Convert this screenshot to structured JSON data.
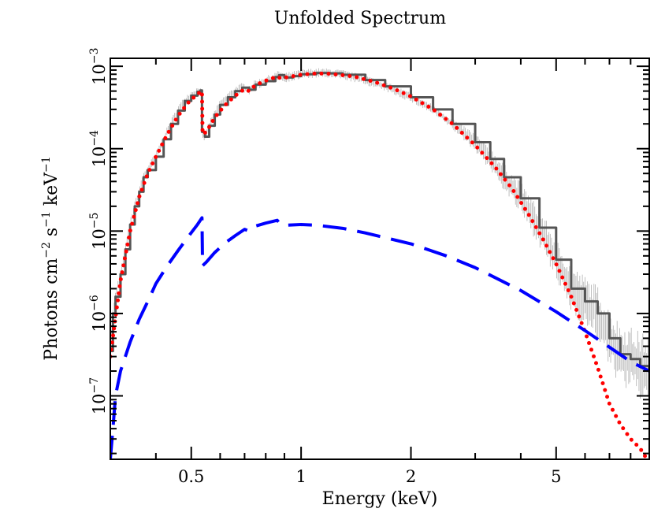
{
  "chart_data": {
    "type": "line",
    "title": "Unfolded Spectrum",
    "xlabel": "Energy (keV)",
    "ylabel": {
      "base": "Photons cm",
      "e1": "−2",
      "mid1": " s",
      "e2": "−1",
      "mid2": " keV",
      "e3": "−1"
    },
    "xscale": "log",
    "yscale": "log",
    "xlim": [
      0.3,
      9.0
    ],
    "ylim": [
      1.7e-08,
      0.00125
    ],
    "grid": false,
    "legend": "none",
    "x_ticks": [
      {
        "value": 0.5,
        "label": "0.5"
      },
      {
        "value": 1,
        "label": "1"
      },
      {
        "value": 2,
        "label": "2"
      },
      {
        "value": 5,
        "label": "5"
      }
    ],
    "y_ticks": [
      {
        "value": 1e-07,
        "base": "10",
        "exp": "−7"
      },
      {
        "value": 1e-06,
        "base": "10",
        "exp": "−6"
      },
      {
        "value": 1e-05,
        "base": "10",
        "exp": "−5"
      },
      {
        "value": 0.0001,
        "base": "10",
        "exp": "−4"
      },
      {
        "value": 0.001,
        "base": "10",
        "exp": "−3"
      }
    ],
    "series": [
      {
        "style": "data-steps",
        "color": "#555555",
        "x": [
          0.3,
          0.305,
          0.31,
          0.32,
          0.33,
          0.34,
          0.35,
          0.36,
          0.37,
          0.38,
          0.4,
          0.42,
          0.44,
          0.46,
          0.48,
          0.5,
          0.52,
          0.53,
          0.535,
          0.545,
          0.56,
          0.58,
          0.6,
          0.63,
          0.66,
          0.69,
          0.72,
          0.75,
          0.8,
          0.85,
          0.87,
          0.9,
          0.95,
          1.0,
          1.1,
          1.2,
          1.3,
          1.5,
          1.7,
          2.0,
          2.3,
          2.6,
          3.0,
          3.3,
          3.6,
          4.0,
          4.5,
          5.0,
          5.5,
          6.0,
          6.5,
          7.0,
          7.5,
          8.0,
          8.5,
          9.0
        ],
        "y": [
          3.5e-07,
          1e-06,
          1.6e-06,
          3e-06,
          6e-06,
          1.2e-05,
          2e-05,
          3e-05,
          4.5e-05,
          5.5e-05,
          8e-05,
          0.00013,
          0.0002,
          0.00029,
          0.00038,
          0.00044,
          0.00049,
          0.00051,
          0.00016,
          0.00014,
          0.00019,
          0.00026,
          0.00034,
          0.00042,
          0.0005,
          0.00055,
          0.00052,
          0.0006,
          0.00066,
          0.00074,
          0.00078,
          0.00073,
          0.00076,
          0.0008,
          0.00083,
          0.00082,
          0.00079,
          0.00068,
          0.00057,
          0.00042,
          0.0003,
          0.0002,
          0.00012,
          7.5e-05,
          4.5e-05,
          2.5e-05,
          1.1e-05,
          4.5e-06,
          2e-06,
          1.4e-06,
          1e-06,
          5e-07,
          3.2e-07,
          2.8e-07,
          2.3e-07,
          2.1e-07
        ]
      },
      {
        "style": "dotted",
        "color": "#ff0000",
        "x": [
          0.3,
          0.31,
          0.32,
          0.34,
          0.36,
          0.38,
          0.4,
          0.43,
          0.46,
          0.49,
          0.52,
          0.535,
          0.537,
          0.55,
          0.58,
          0.62,
          0.66,
          0.7,
          0.72,
          0.75,
          0.8,
          0.86,
          0.88,
          0.92,
          1.0,
          1.1,
          1.2,
          1.4,
          1.6,
          1.8,
          2.0,
          2.3,
          2.6,
          3.0,
          3.4,
          3.8,
          4.2,
          4.6,
          5.0,
          5.5,
          6.0,
          6.5,
          7.0,
          7.5,
          8.0,
          8.5,
          8.8
        ],
        "y": [
          3e-07,
          9e-07,
          2.5e-06,
          1e-05,
          2.6e-05,
          5e-05,
          8e-05,
          0.00015,
          0.00025,
          0.00036,
          0.00046,
          0.0005,
          0.00015,
          0.00016,
          0.00024,
          0.00034,
          0.00044,
          0.00053,
          0.0005,
          0.00059,
          0.00067,
          0.00075,
          0.00071,
          0.00074,
          0.00079,
          0.00082,
          0.00081,
          0.00075,
          0.00064,
          0.00053,
          0.00043,
          0.0003,
          0.0002,
          0.00011,
          6e-05,
          3.2e-05,
          1.6e-05,
          8e-06,
          4e-06,
          1.6e-06,
          6e-07,
          2.2e-07,
          8e-08,
          4.5e-08,
          3e-08,
          2.3e-08,
          1.8e-08
        ]
      },
      {
        "style": "dashed",
        "color": "#0000ff",
        "x": [
          0.3,
          0.305,
          0.31,
          0.32,
          0.34,
          0.36,
          0.38,
          0.4,
          0.43,
          0.46,
          0.49,
          0.52,
          0.535,
          0.537,
          0.55,
          0.58,
          0.62,
          0.66,
          0.7,
          0.72,
          0.75,
          0.8,
          0.86,
          0.88,
          0.92,
          1.0,
          1.1,
          1.3,
          1.5,
          2.0,
          2.5,
          3.0,
          4.0,
          5.0,
          6.0,
          7.0,
          8.0,
          9.0
        ],
        "y": [
          1.7e-08,
          4e-08,
          1e-07,
          2e-07,
          4.5e-07,
          8.5e-07,
          1.4e-06,
          2.3e-06,
          3.8e-06,
          5.8e-06,
          8.5e-06,
          1.2e-05,
          1.45e-05,
          3.8e-06,
          4.2e-06,
          5.5e-06,
          7.2e-06,
          8.8e-06,
          1.05e-05,
          1e-05,
          1.15e-05,
          1.25e-05,
          1.35e-05,
          1.2e-05,
          1.18e-05,
          1.2e-05,
          1.18e-05,
          1.08e-05,
          9.5e-06,
          7e-06,
          5e-06,
          3.6e-06,
          1.9e-06,
          1.05e-06,
          6.2e-07,
          3.9e-07,
          2.6e-07,
          2e-07
        ]
      }
    ]
  }
}
